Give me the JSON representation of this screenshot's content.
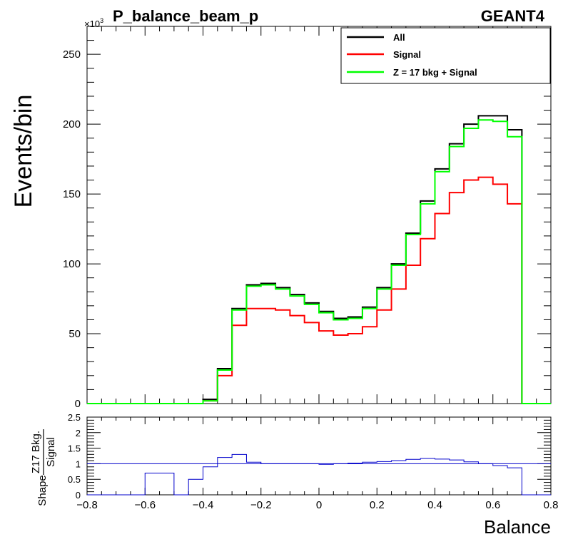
{
  "header": {
    "title": "P_balance_beam_p",
    "generator": "GEANT4",
    "exponent_prefix": "×10",
    "exponent_power": "3"
  },
  "chart_data": [
    {
      "type": "line",
      "subtype": "step-histogram",
      "title": "P_balance_beam_p",
      "xlabel": "Balance",
      "ylabel": "Events/bin",
      "y_scale_label": "×10^3",
      "xlim": [
        -0.8,
        0.8
      ],
      "ylim": [
        0,
        270
      ],
      "x_ticks": [
        -0.8,
        -0.6,
        -0.4,
        -0.2,
        0,
        0.2,
        0.4,
        0.6,
        0.8
      ],
      "x_tick_labels": [
        "−0.8",
        "−0.6",
        "−0.4",
        "−0.2",
        "0",
        "0.2",
        "0.4",
        "0.6",
        "0.8"
      ],
      "y_ticks": [
        0,
        50,
        100,
        150,
        200,
        250
      ],
      "y_tick_labels": [
        "0",
        "50",
        "100",
        "150",
        "200",
        "250"
      ],
      "bin_edges": [
        -0.8,
        -0.75,
        -0.7,
        -0.65,
        -0.6,
        -0.55,
        -0.5,
        -0.45,
        -0.4,
        -0.35,
        -0.3,
        -0.25,
        -0.2,
        -0.15,
        -0.1,
        -0.05,
        0,
        0.05,
        0.1,
        0.15,
        0.2,
        0.25,
        0.3,
        0.35,
        0.4,
        0.45,
        0.5,
        0.55,
        0.6,
        0.65,
        0.7,
        0.75,
        0.8
      ],
      "legend_position": "top-right",
      "series": [
        {
          "name": "All",
          "color": "#000000",
          "values": [
            0,
            0,
            0,
            0,
            0,
            0,
            0,
            0,
            3,
            25,
            68,
            85,
            86,
            83,
            78,
            72,
            66,
            61,
            62,
            69,
            83,
            100,
            122,
            145,
            168,
            186,
            200,
            206,
            206,
            196,
            0,
            0
          ]
        },
        {
          "name": "Signal",
          "color": "#ff0000",
          "values": [
            0,
            0,
            0,
            0,
            0,
            0,
            0,
            0,
            2,
            20,
            56,
            68,
            68,
            67,
            63,
            58,
            52,
            49,
            50,
            55,
            67,
            82,
            99,
            118,
            136,
            151,
            160,
            162,
            157,
            143,
            0,
            0
          ]
        },
        {
          "name": "Z = 17 bkg + Signal",
          "color": "#00ff00",
          "values": [
            0,
            0,
            0,
            0,
            0,
            0,
            0,
            0,
            2,
            24,
            67,
            84,
            85,
            82,
            77,
            71,
            65,
            60,
            61,
            68,
            82,
            99,
            121,
            143,
            166,
            184,
            197,
            203,
            202,
            191,
            0,
            0
          ]
        }
      ]
    },
    {
      "type": "line",
      "subtype": "step-histogram",
      "ylabel_prefix": "Shape",
      "ylabel_numerator": "Z17 Bkg.",
      "ylabel_denominator": "Signal",
      "xlim": [
        -0.8,
        0.8
      ],
      "ylim": [
        0,
        2.5
      ],
      "y_ticks": [
        0,
        0.5,
        1,
        1.5,
        2,
        2.5
      ],
      "y_tick_labels": [
        "0",
        "0.5",
        "1",
        "1.5",
        "2",
        "2.5"
      ],
      "reference_line": 1,
      "series": [
        {
          "name": "",
          "color": "#0000cc",
          "values": [
            0,
            0,
            0,
            0,
            0.7,
            0.7,
            0,
            0.5,
            0.9,
            1.2,
            1.3,
            1.05,
            1.0,
            1.0,
            1.0,
            1.0,
            0.98,
            1.0,
            1.02,
            1.05,
            1.07,
            1.1,
            1.14,
            1.17,
            1.15,
            1.12,
            1.06,
            1.0,
            0.94,
            0.87,
            0,
            0
          ]
        }
      ]
    }
  ]
}
